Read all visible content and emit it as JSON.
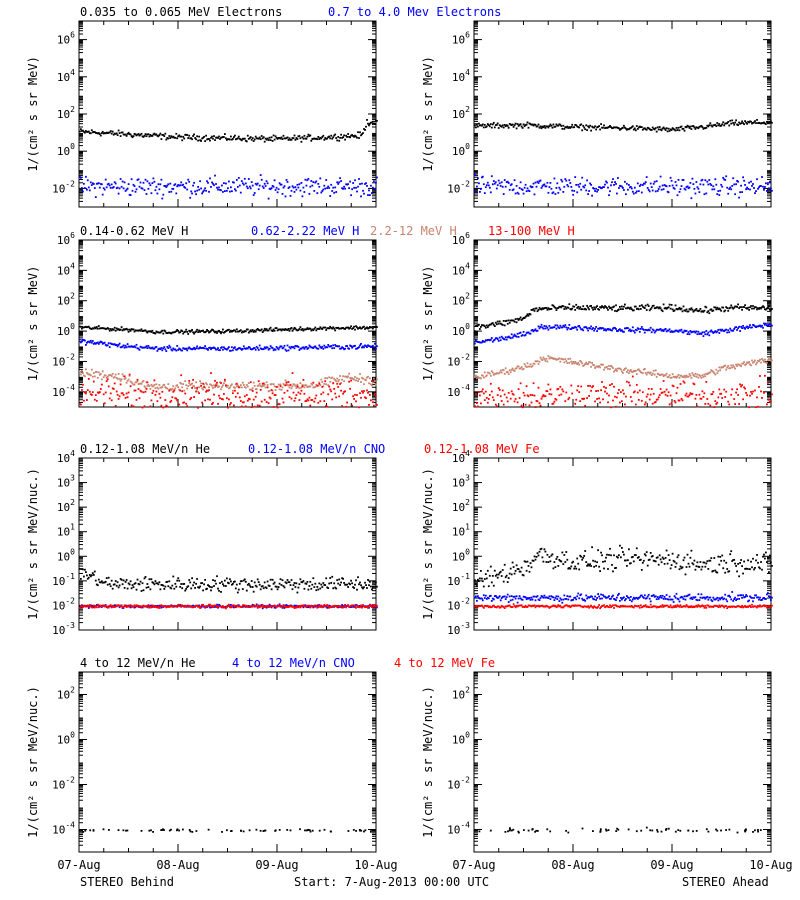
{
  "footer": {
    "left": "STEREO Behind",
    "center": "Start:  7-Aug-2013 00:00 UTC",
    "right": "STEREO Ahead"
  },
  "colors": {
    "black": "#000000",
    "blue": "#0000ff",
    "tan": "#c8846e",
    "red": "#ff0000"
  },
  "rows": [
    {
      "legend": [
        {
          "text": "0.035 to 0.065 MeV Electrons",
          "color": "#000000"
        },
        {
          "text": "0.7 to 4.0 Mev Electrons",
          "color": "#0000ff"
        }
      ],
      "ylabel": "1/(cm² s sr MeV)",
      "yticks": [
        {
          "e": 6,
          "t": "10^6"
        },
        {
          "e": 4,
          "t": "10^4"
        },
        {
          "e": 2,
          "t": "10^2"
        },
        {
          "e": 0,
          "t": "10^0"
        },
        {
          "e": -2,
          "t": "10^-2"
        }
      ]
    },
    {
      "legend": [
        {
          "text": "0.14-0.62 MeV H",
          "color": "#000000"
        },
        {
          "text": "0.62-2.22 MeV H",
          "color": "#0000ff"
        },
        {
          "text": "2.2-12 MeV H",
          "color": "#c8846e"
        },
        {
          "text": "13-100 MeV H",
          "color": "#ff0000"
        }
      ],
      "ylabel": "1/(cm² s sr MeV)",
      "yticks": [
        {
          "e": 6,
          "t": "10^6"
        },
        {
          "e": 4,
          "t": "10^4"
        },
        {
          "e": 2,
          "t": "10^2"
        },
        {
          "e": 0,
          "t": "10^0"
        },
        {
          "e": -2,
          "t": "10^-2"
        },
        {
          "e": -4,
          "t": "10^-4"
        }
      ]
    },
    {
      "legend": [
        {
          "text": "0.12-1.08 MeV/n He",
          "color": "#000000"
        },
        {
          "text": "0.12-1.08 MeV/n CNO",
          "color": "#0000ff"
        },
        {
          "text": "0.12-1.08 MeV Fe",
          "color": "#ff0000"
        }
      ],
      "ylabel": "1/(cm² s sr MeV/nuc.)",
      "yticks": [
        {
          "e": 4,
          "t": "10^4"
        },
        {
          "e": 3,
          "t": "10^3"
        },
        {
          "e": 2,
          "t": "10^2"
        },
        {
          "e": 1,
          "t": "10^1"
        },
        {
          "e": 0,
          "t": "10^0"
        },
        {
          "e": -1,
          "t": "10^-1"
        },
        {
          "e": -2,
          "t": "10^-2"
        },
        {
          "e": -3,
          "t": "10^-3"
        }
      ]
    },
    {
      "legend": [
        {
          "text": "4 to 12 MeV/n He",
          "color": "#000000"
        },
        {
          "text": "4 to 12 MeV/n CNO",
          "color": "#0000ff"
        },
        {
          "text": "4 to 12 MeV Fe",
          "color": "#ff0000"
        }
      ],
      "ylabel": "1/(cm² s sr MeV/nuc.)",
      "yticks": [
        {
          "e": 2,
          "t": "10^2"
        },
        {
          "e": 0,
          "t": "10^0"
        },
        {
          "e": -2,
          "t": "10^-2"
        },
        {
          "e": -4,
          "t": "10^-4"
        }
      ]
    }
  ],
  "xticks": [
    "07-Aug",
    "08-Aug",
    "09-Aug",
    "10-Aug"
  ],
  "chart_data": [
    {
      "panel": "electrons-behind",
      "type": "scatter",
      "y_scale": "log",
      "ylim_exp": [
        -3,
        7
      ],
      "x_days": [
        0,
        3
      ],
      "series": [
        {
          "name": "0.035 to 0.065 MeV Electrons",
          "color": "#000000",
          "x": [
            0,
            0.5,
            1.0,
            1.5,
            2.0,
            2.5,
            2.85,
            2.9,
            3.0
          ],
          "y_exp": [
            1.1,
            0.95,
            0.8,
            0.75,
            0.7,
            0.8,
            0.9,
            1.6,
            1.6
          ],
          "spread": 0.08
        },
        {
          "name": "0.7 to 4.0 Mev Electrons",
          "color": "#0000ff",
          "x": [
            0,
            3.0
          ],
          "y_exp": [
            -1.85,
            -1.85
          ],
          "spread": 0.25
        }
      ]
    },
    {
      "panel": "electrons-ahead",
      "type": "scatter",
      "y_scale": "log",
      "ylim_exp": [
        -3,
        7
      ],
      "x_days": [
        0,
        3
      ],
      "series": [
        {
          "x": [
            0,
            0.5,
            1.0,
            1.5,
            2.0,
            2.3,
            2.6,
            3.0
          ],
          "y_exp": [
            1.4,
            1.45,
            1.35,
            1.3,
            1.2,
            1.35,
            1.55,
            1.6
          ],
          "spread": 0.07,
          "color": "#000000"
        },
        {
          "x": [
            0,
            3.0
          ],
          "y_exp": [
            -1.85,
            -1.85
          ],
          "spread": 0.25,
          "color": "#0000ff"
        }
      ]
    },
    {
      "panel": "protons-behind",
      "type": "scatter",
      "y_scale": "log",
      "ylim_exp": [
        -5,
        6
      ],
      "x_days": [
        0,
        3
      ],
      "series": [
        {
          "x": [
            0,
            0.5,
            0.8,
            1.5,
            2.5,
            3.0
          ],
          "y_exp": [
            0.3,
            0.15,
            0.0,
            0.05,
            0.25,
            0.3
          ],
          "spread": 0.06,
          "color": "#000000"
        },
        {
          "x": [
            0,
            0.4,
            0.8,
            1.5,
            2.5,
            3.0
          ],
          "y_exp": [
            -0.6,
            -0.9,
            -1.1,
            -1.1,
            -1.0,
            -0.95
          ],
          "spread": 0.08,
          "color": "#0000ff"
        },
        {
          "x": [
            0,
            0.4,
            0.7,
            1.5,
            2.4,
            2.7,
            3.0
          ],
          "y_exp": [
            -2.7,
            -2.9,
            -3.6,
            -3.6,
            -3.5,
            -3.0,
            -3.2
          ],
          "spread": 0.15,
          "color": "#c8846e"
        },
        {
          "x": [
            0,
            3.0
          ],
          "y_exp": [
            -4.1,
            -4.1
          ],
          "spread": 0.55,
          "color": "#ff0000"
        }
      ]
    },
    {
      "panel": "protons-ahead",
      "type": "scatter",
      "y_scale": "log",
      "ylim_exp": [
        -5,
        6
      ],
      "x_days": [
        0,
        3
      ],
      "series": [
        {
          "x": [
            0,
            0.3,
            0.5,
            0.6,
            1.0,
            1.5,
            2.0,
            2.3,
            2.6,
            3.0
          ],
          "y_exp": [
            0.3,
            0.6,
            0.9,
            1.5,
            1.6,
            1.55,
            1.6,
            1.4,
            1.6,
            1.55
          ],
          "spread": 0.1,
          "color": "#000000"
        },
        {
          "x": [
            0,
            0.3,
            0.55,
            0.65,
            1.0,
            1.5,
            2.0,
            2.3,
            2.7,
            3.0
          ],
          "y_exp": [
            -0.7,
            -0.4,
            -0.1,
            0.35,
            0.3,
            0.15,
            0.1,
            -0.1,
            0.25,
            0.5
          ],
          "spread": 0.08,
          "color": "#0000ff"
        },
        {
          "x": [
            0,
            0.3,
            0.55,
            0.7,
            1.0,
            1.5,
            2.0,
            2.3,
            2.5,
            3.0
          ],
          "y_exp": [
            -3.0,
            -2.6,
            -2.2,
            -1.7,
            -2.0,
            -2.5,
            -2.9,
            -2.9,
            -2.4,
            -1.8
          ],
          "spread": 0.1,
          "color": "#c8846e"
        },
        {
          "x": [
            0,
            3.0
          ],
          "y_exp": [
            -4.2,
            -4.2
          ],
          "spread": 0.5,
          "color": "#ff0000"
        }
      ]
    },
    {
      "panel": "heavy-ions-low-behind",
      "type": "scatter",
      "y_scale": "log",
      "ylim_exp": [
        -3,
        4
      ],
      "x_days": [
        0,
        3
      ],
      "series": [
        {
          "x": [
            0,
            0.3,
            3.0
          ],
          "y_exp": [
            -0.6,
            -1.1,
            -1.1
          ],
          "spread": 0.15,
          "color": "#000000"
        },
        {
          "x": [
            0,
            3.0
          ],
          "y_exp": [
            -2.0,
            -2.0
          ],
          "spread": 0.03,
          "color": "#0000ff"
        },
        {
          "x": [
            0,
            3.0
          ],
          "y_exp": [
            -2.0,
            -2.0
          ],
          "spread": 0.03,
          "color": "#ff0000"
        }
      ]
    },
    {
      "panel": "heavy-ions-low-ahead",
      "type": "scatter",
      "y_scale": "log",
      "ylim_exp": [
        -3,
        4
      ],
      "x_days": [
        0,
        3
      ],
      "series": [
        {
          "x": [
            0,
            0.2,
            0.5,
            0.65,
            1.0,
            1.5,
            2.0,
            2.3,
            2.6,
            3.0
          ],
          "y_exp": [
            -1.0,
            -0.8,
            -0.4,
            0.1,
            -0.2,
            -0.1,
            -0.1,
            -0.3,
            -0.2,
            -0.3
          ],
          "spread": 0.22,
          "color": "#000000"
        },
        {
          "x": [
            0,
            3.0
          ],
          "y_exp": [
            -1.65,
            -1.65
          ],
          "spread": 0.08,
          "color": "#0000ff"
        },
        {
          "x": [
            0,
            3.0
          ],
          "y_exp": [
            -2.0,
            -2.0
          ],
          "spread": 0.03,
          "color": "#ff0000"
        }
      ]
    },
    {
      "panel": "heavy-ions-high-behind",
      "type": "scatter",
      "y_scale": "log",
      "ylim_exp": [
        -5,
        3
      ],
      "x_days": [
        0,
        3
      ],
      "series": [
        {
          "x": [
            0,
            3.0
          ],
          "y_exp": [
            -4.0,
            -4.0
          ],
          "spread": 0.03,
          "color": "#000000",
          "sparse": true
        }
      ]
    },
    {
      "panel": "heavy-ions-high-ahead",
      "type": "scatter",
      "y_scale": "log",
      "ylim_exp": [
        -5,
        3
      ],
      "x_days": [
        0,
        3
      ],
      "series": [
        {
          "x": [
            0,
            3.0
          ],
          "y_exp": [
            -4.0,
            -4.0
          ],
          "spread": 0.05,
          "color": "#000000",
          "sparse": true
        }
      ]
    }
  ]
}
